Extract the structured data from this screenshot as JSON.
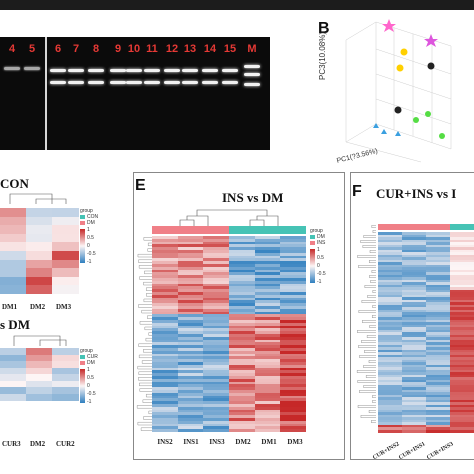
{
  "panel_a": {
    "lanes": [
      "4",
      "5",
      "6",
      "7",
      "8",
      "9",
      "10",
      "11",
      "12",
      "13",
      "14",
      "15",
      "M"
    ]
  },
  "panel_b": {
    "letter": "B",
    "y_axis_label": "PC3(10.08%)",
    "x_axis_label": "PC1(?3.56%)"
  },
  "panel_c": {
    "title_fragment": "CON",
    "columns": [
      "DM1",
      "DM2",
      "DM3"
    ],
    "legend": [
      "group",
      "CON",
      "DM",
      "1",
      "0.5",
      "0",
      "-0.5",
      "-1"
    ]
  },
  "panel_d": {
    "title_fragment": "s DM",
    "columns": [
      "CUR3",
      "DM2",
      "CUR2"
    ],
    "legend": [
      "group",
      "CUR",
      "DM",
      "1",
      "0.5",
      "0",
      "-0.5",
      "-1"
    ]
  },
  "panel_e": {
    "letter": "E",
    "title": "INS vs DM",
    "columns": [
      "INS2",
      "INS1",
      "INS3",
      "DM2",
      "DM1",
      "DM3"
    ],
    "legend": [
      "group",
      "DM",
      "INS",
      "1",
      "0.5",
      "0",
      "-0.5",
      "-1"
    ]
  },
  "panel_f": {
    "letter": "F",
    "title": "CUR+INS vs I",
    "columns": [
      "CUR+INS2",
      "CUR+INS1",
      "CUR+INS3"
    ]
  },
  "colors": {
    "high": "#c62828",
    "mid": "#fdf5f5",
    "low": "#2f7fbf",
    "group_a": "#46c3b5",
    "group_b": "#f07f87",
    "lane_label": "#e53935"
  }
}
